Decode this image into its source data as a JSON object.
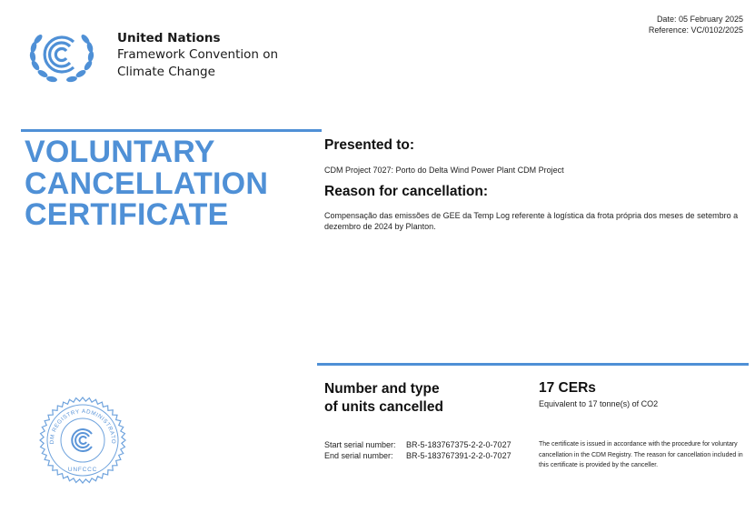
{
  "header": {
    "org_name": "United Nations",
    "org_line1": "Framework Convention on",
    "org_line2": "Climate Change",
    "date": "Date: 05 February 2025",
    "reference": "Reference: VC/0102/2025"
  },
  "title": {
    "line1": "VOLUNTARY",
    "line2": "CANCELLATION",
    "line3": "CERTIFICATE"
  },
  "presented": {
    "heading": "Presented to:",
    "text": "CDM Project 7027: Porto do Delta Wind Power Plant CDM Project"
  },
  "reason": {
    "heading": "Reason for cancellation:",
    "text": "Compensação das emissões de GEE da Temp Log referente à logística da frota própria dos meses de setembro a dezembro de 2024 by Planton."
  },
  "units": {
    "heading_line1": "Number and type",
    "heading_line2": "of units cancelled",
    "amount": "17 CERs",
    "equivalent": "Equivalent to 17 tonne(s) of CO2"
  },
  "serials": {
    "start_label": "Start serial number:",
    "start_value": "BR-5-183767375-2-2-0-7027",
    "end_label": "End serial number:",
    "end_value": "BR-5-183767391-2-2-0-7027"
  },
  "note": "The certificate is issued in accordance with the procedure for voluntary cancellation in the CDM Registry. The reason for cancellation included in this certificate is provided by the canceller.",
  "seal": {
    "ring_text": "CDM REGISTRY ADMINISTRATOR",
    "bottom_text": "UNFCCC"
  },
  "colors": {
    "accent": "#4f90d6"
  },
  "icons": {
    "logo": "unfccc-logo-icon",
    "seal": "cdm-registry-seal-icon"
  }
}
